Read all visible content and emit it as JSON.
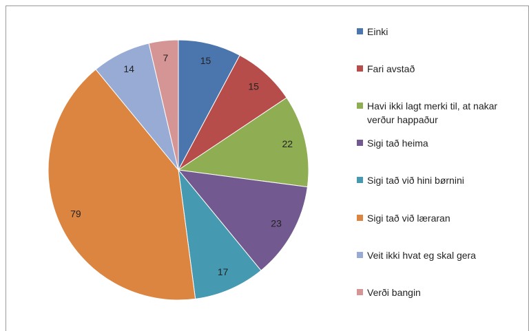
{
  "chart_data": {
    "type": "pie",
    "categories": [
      "Einki",
      "Fari avstað",
      "Havi ikki lagt merki til, at nakar verður happaður",
      "Sigi tað heima",
      "Sigi tað við hini børnini",
      "Sigi tað við læraran",
      "Veit ikki hvat eg skal gera",
      "Verði bangin"
    ],
    "values": [
      15,
      15,
      22,
      23,
      17,
      79,
      14,
      7
    ],
    "colors": [
      "#4a76ad",
      "#b64d4a",
      "#8fad52",
      "#72598f",
      "#4599b1",
      "#dc8540",
      "#97abd4",
      "#d59595"
    ],
    "legend": "right"
  }
}
